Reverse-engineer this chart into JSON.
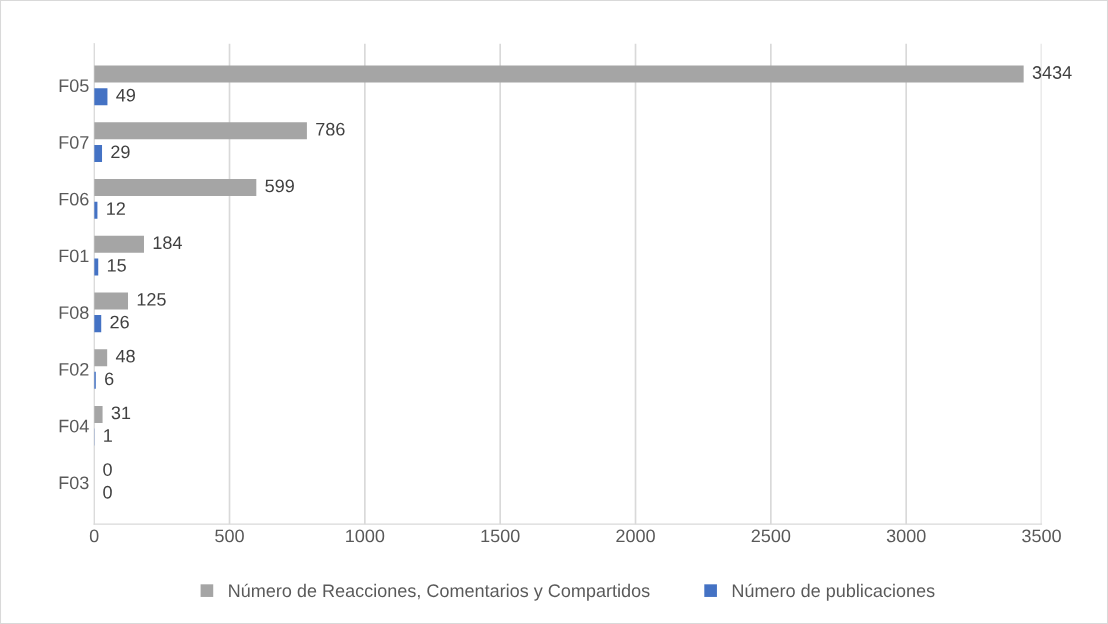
{
  "chart_data": {
    "type": "bar",
    "orientation": "horizontal",
    "categories": [
      "F05",
      "F07",
      "F06",
      "F01",
      "F08",
      "F02",
      "F04",
      "F03"
    ],
    "series": [
      {
        "name": "Número de Reacciones, Comentarios y Compartidos",
        "color": "#a5a5a5",
        "values": [
          3434,
          786,
          599,
          184,
          125,
          48,
          31,
          0
        ]
      },
      {
        "name": "Número de publicaciones",
        "color": "#4472c4",
        "values": [
          49,
          29,
          12,
          15,
          26,
          6,
          1,
          0
        ]
      }
    ],
    "xlim": [
      0,
      3500
    ],
    "xticks": [
      0,
      500,
      1000,
      1500,
      2000,
      2500,
      3000,
      3500
    ],
    "grid": "x",
    "legend": "bottom",
    "data_labels": true
  }
}
